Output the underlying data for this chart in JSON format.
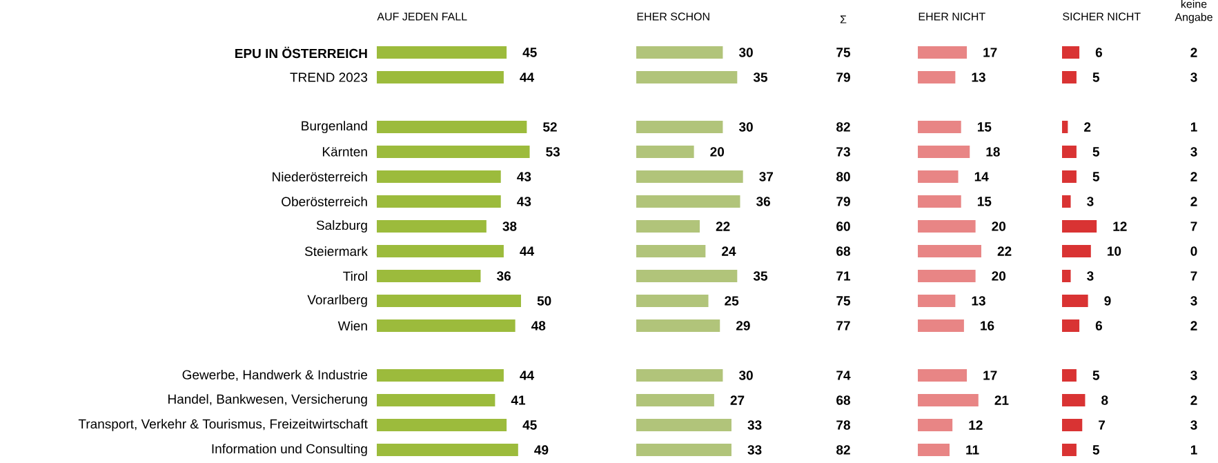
{
  "chart_data": [
    {
      "type": "bar",
      "orientation": "horizontal",
      "title": "AUF JEDEN FALL",
      "color": "#9cbb3c",
      "data_labels": true,
      "tick_labels": "y",
      "categories": [
        "EPU IN ÖSTERREICH",
        "TREND 2023",
        null,
        "Burgenland",
        "Kärnten",
        "Niederösterreich",
        "Oberösterreich",
        "Salzburg",
        "Steiermark",
        "Tirol",
        "Vorarlberg",
        "Wien",
        null,
        "Gewerbe, Handwerk & Industrie",
        "Handel, Bankwesen, Versicherung",
        "Transport, Verkehr & Tourismus, Freizeitwirtschaft",
        "Information und Consulting"
      ],
      "values": [
        45,
        44,
        null,
        52,
        53,
        43,
        43,
        38,
        44,
        36,
        50,
        48,
        null,
        44,
        41,
        45,
        49
      ]
    },
    {
      "type": "bar",
      "orientation": "horizontal",
      "title": "EHER SCHON",
      "color": "#b1c47a",
      "data_labels": true,
      "values": [
        30,
        35,
        null,
        30,
        20,
        37,
        36,
        22,
        24,
        35,
        25,
        29,
        null,
        30,
        27,
        33,
        33
      ]
    },
    {
      "type": "other",
      "title": "Σ",
      "data_labels": true,
      "values": [
        75,
        79,
        null,
        82,
        73,
        80,
        79,
        60,
        68,
        71,
        75,
        77,
        null,
        74,
        68,
        78,
        82
      ]
    },
    {
      "type": "bar",
      "orientation": "horizontal",
      "title": "EHER NICHT",
      "color": "#e88585",
      "data_labels": true,
      "values": [
        17,
        13,
        null,
        15,
        18,
        14,
        15,
        20,
        22,
        20,
        13,
        16,
        null,
        17,
        21,
        12,
        11
      ]
    },
    {
      "type": "bar",
      "orientation": "horizontal",
      "title": "SICHER NICHT",
      "color": "#d93333",
      "data_labels": true,
      "values": [
        6,
        5,
        null,
        2,
        5,
        5,
        3,
        12,
        10,
        3,
        9,
        6,
        null,
        5,
        8,
        7,
        5
      ]
    },
    {
      "type": "other",
      "title": "keine Angabe",
      "data_labels": true,
      "values": [
        2,
        3,
        null,
        1,
        3,
        2,
        2,
        7,
        0,
        7,
        3,
        2,
        null,
        3,
        2,
        3,
        1
      ]
    }
  ]
}
